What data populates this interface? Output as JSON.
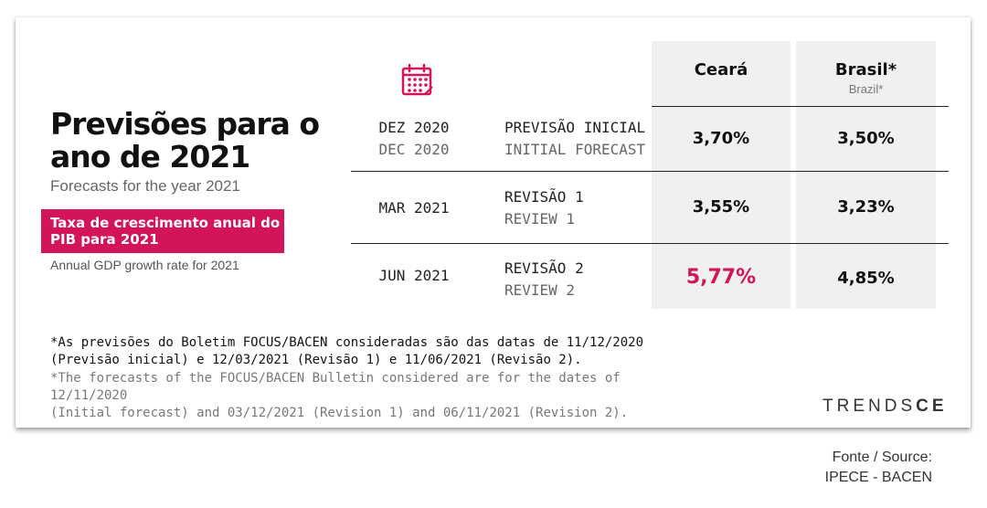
{
  "title": "Previsões para o ano de 2021",
  "subtitle": "Forecasts for the year 2021",
  "highlight": {
    "label": "Taxa de crescimento anual do PIB para 2021",
    "caption": "Annual GDP growth rate for 2021",
    "color": "#d4145a"
  },
  "icon": "calendar-icon",
  "columns": {
    "ceara": "Ceará",
    "brasil": "Brasil*",
    "brasil_sub": "Brazil*"
  },
  "rows": [
    {
      "date_pt": "DEZ 2020",
      "date_en": "DEC 2020",
      "rev_pt": "PREVISÃO INICIAL",
      "rev_en": "INITIAL FORECAST",
      "ceara": "3,70%",
      "brasil": "3,50%"
    },
    {
      "date_pt": "MAR 2021",
      "date_en": "",
      "rev_pt": "REVISÃO 1",
      "rev_en": "REVIEW 1",
      "ceara": "3,55%",
      "brasil": "3,23%"
    },
    {
      "date_pt": "JUN 2021",
      "date_en": "",
      "rev_pt": "REVISÃO 2",
      "rev_en": "REVIEW 2",
      "ceara": "5,77%",
      "brasil": "4,85%"
    }
  ],
  "note_pt": [
    "*As previsões do Boletim FOCUS/BACEN consideradas são das datas de 11/12/2020",
    "(Previsão inicial) e 12/03/2021 (Revisão 1) e 11/06/2021 (Revisão 2)."
  ],
  "note_en": [
    "*The forecasts of the FOCUS/BACEN Bulletin considered are for the dates of 12/11/2020",
    "(Initial forecast) and 03/12/2021 (Revision 1) and 06/11/2021 (Revision 2)."
  ],
  "logo": {
    "part1": "TRENDS",
    "part2": "CE"
  },
  "source": [
    "Fonte / Source:",
    "IPECE - BACEN"
  ]
}
